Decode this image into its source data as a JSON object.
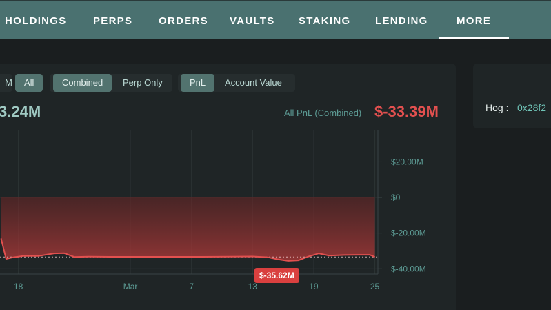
{
  "nav": {
    "items": [
      {
        "label": "HOLDINGS",
        "active": false
      },
      {
        "label": "PERPS",
        "active": false
      },
      {
        "label": "ORDERS",
        "active": false
      },
      {
        "label": "VAULTS",
        "active": false
      },
      {
        "label": "STAKING",
        "active": false
      },
      {
        "label": "LENDING",
        "active": false
      },
      {
        "label": "MORE",
        "active": true
      }
    ]
  },
  "filters": {
    "range_cut": "M",
    "range_all": "All",
    "scope_combined": "Combined",
    "scope_perp": "Perp Only",
    "metric_pnl": "PnL",
    "metric_account": "Account Value"
  },
  "summary": {
    "left_value": "3.24M",
    "pnl_label": "All PnL (Combined)",
    "pnl_value": "$-33.39M"
  },
  "side_panel": {
    "label": "Hog :",
    "address": "0x28f2"
  },
  "chart_data": {
    "type": "area",
    "y_ticks": [
      "$20.00M",
      "$0",
      "$-20.00M",
      "$-40.00M"
    ],
    "y_tick_values": [
      20,
      0,
      -20,
      -40
    ],
    "x_ticks": [
      "18",
      "Mar",
      "7",
      "13",
      "19",
      "25"
    ],
    "x_tick_days": [
      18,
      29,
      35,
      41,
      47,
      53
    ],
    "ylim": [
      -43,
      38
    ],
    "xlim": [
      16.2,
      53.3
    ],
    "tooltip": "$-35.62M",
    "reference_value": -33.39,
    "colors": {
      "line": "#e2504f",
      "fill": "#8a2e2e",
      "grid": "#2c3334",
      "tick": "#5d9c95"
    },
    "series": [
      {
        "x": [
          16.3,
          16.8,
          17.5,
          18.5,
          20,
          21.5,
          22.5,
          23.5,
          25,
          27,
          30,
          33,
          36,
          39,
          41,
          42.5,
          43.5,
          44.5,
          45.5,
          46.5,
          47.5,
          48.5,
          50,
          51.5,
          52.5,
          53
        ],
        "y": [
          -23.0,
          -34.5,
          -33.6,
          -32.8,
          -32.8,
          -31.4,
          -31.3,
          -33.4,
          -33.2,
          -33.3,
          -33.3,
          -33.3,
          -33.3,
          -33.2,
          -33.1,
          -33.6,
          -34.8,
          -35.6,
          -35.3,
          -33.1,
          -31.4,
          -32.6,
          -32.3,
          -32.2,
          -32.2,
          -33.4
        ]
      }
    ]
  }
}
